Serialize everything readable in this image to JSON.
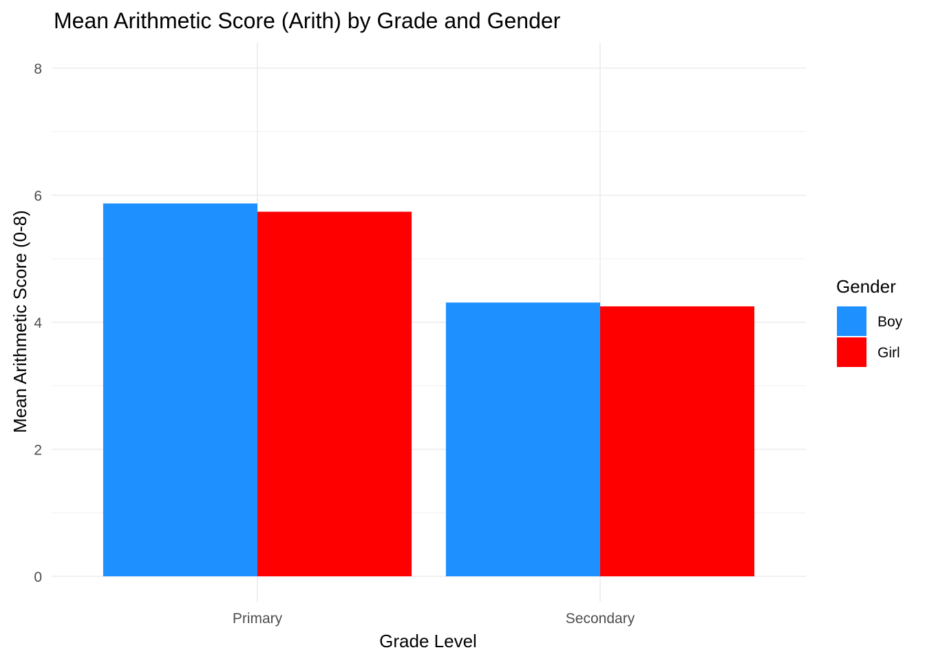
{
  "chart_data": {
    "type": "bar",
    "title": "Mean Arithmetic Score (Arith) by Grade and Gender",
    "xlabel": "Grade Level",
    "ylabel": "Mean Arithmetic Score (0-8)",
    "categories": [
      "Primary",
      "Secondary"
    ],
    "series": [
      {
        "name": "Boy",
        "color": "#1E90FF",
        "values": [
          5.87,
          4.31
        ]
      },
      {
        "name": "Girl",
        "color": "#FF0000",
        "values": [
          5.74,
          4.25
        ]
      }
    ],
    "ylim": [
      0,
      8
    ],
    "yticks": [
      0,
      2,
      4,
      6,
      8
    ],
    "grid": true,
    "legend": {
      "title": "Gender",
      "placement": "right"
    }
  }
}
